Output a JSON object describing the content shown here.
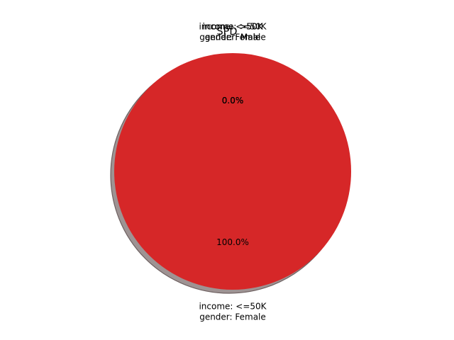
{
  "chart_data": {
    "type": "pie",
    "title": "SPD",
    "slices": [
      {
        "label_line1": "income: <=50K",
        "label_line2": "gender: Female",
        "value": 100.0,
        "pct_label": "100.0%",
        "color": "#d62728"
      },
      {
        "label_line1": "income: <=50K",
        "label_line2": "gender: Male",
        "value": 0.0,
        "pct_label": "0.0%",
        "color": "#1f77b4"
      },
      {
        "label_line1": "income: >50K",
        "label_line2": "gender: Female",
        "value": 0.0,
        "pct_label": "0.0%",
        "color": "#ff7f0e"
      },
      {
        "label_line1": "income: >50K",
        "label_line2": "gender: Male",
        "value": 0.0,
        "pct_label": "0.0%",
        "color": "#2ca02c"
      }
    ],
    "shadow": true,
    "shadow_color": "#9e9393",
    "legend": "none"
  }
}
